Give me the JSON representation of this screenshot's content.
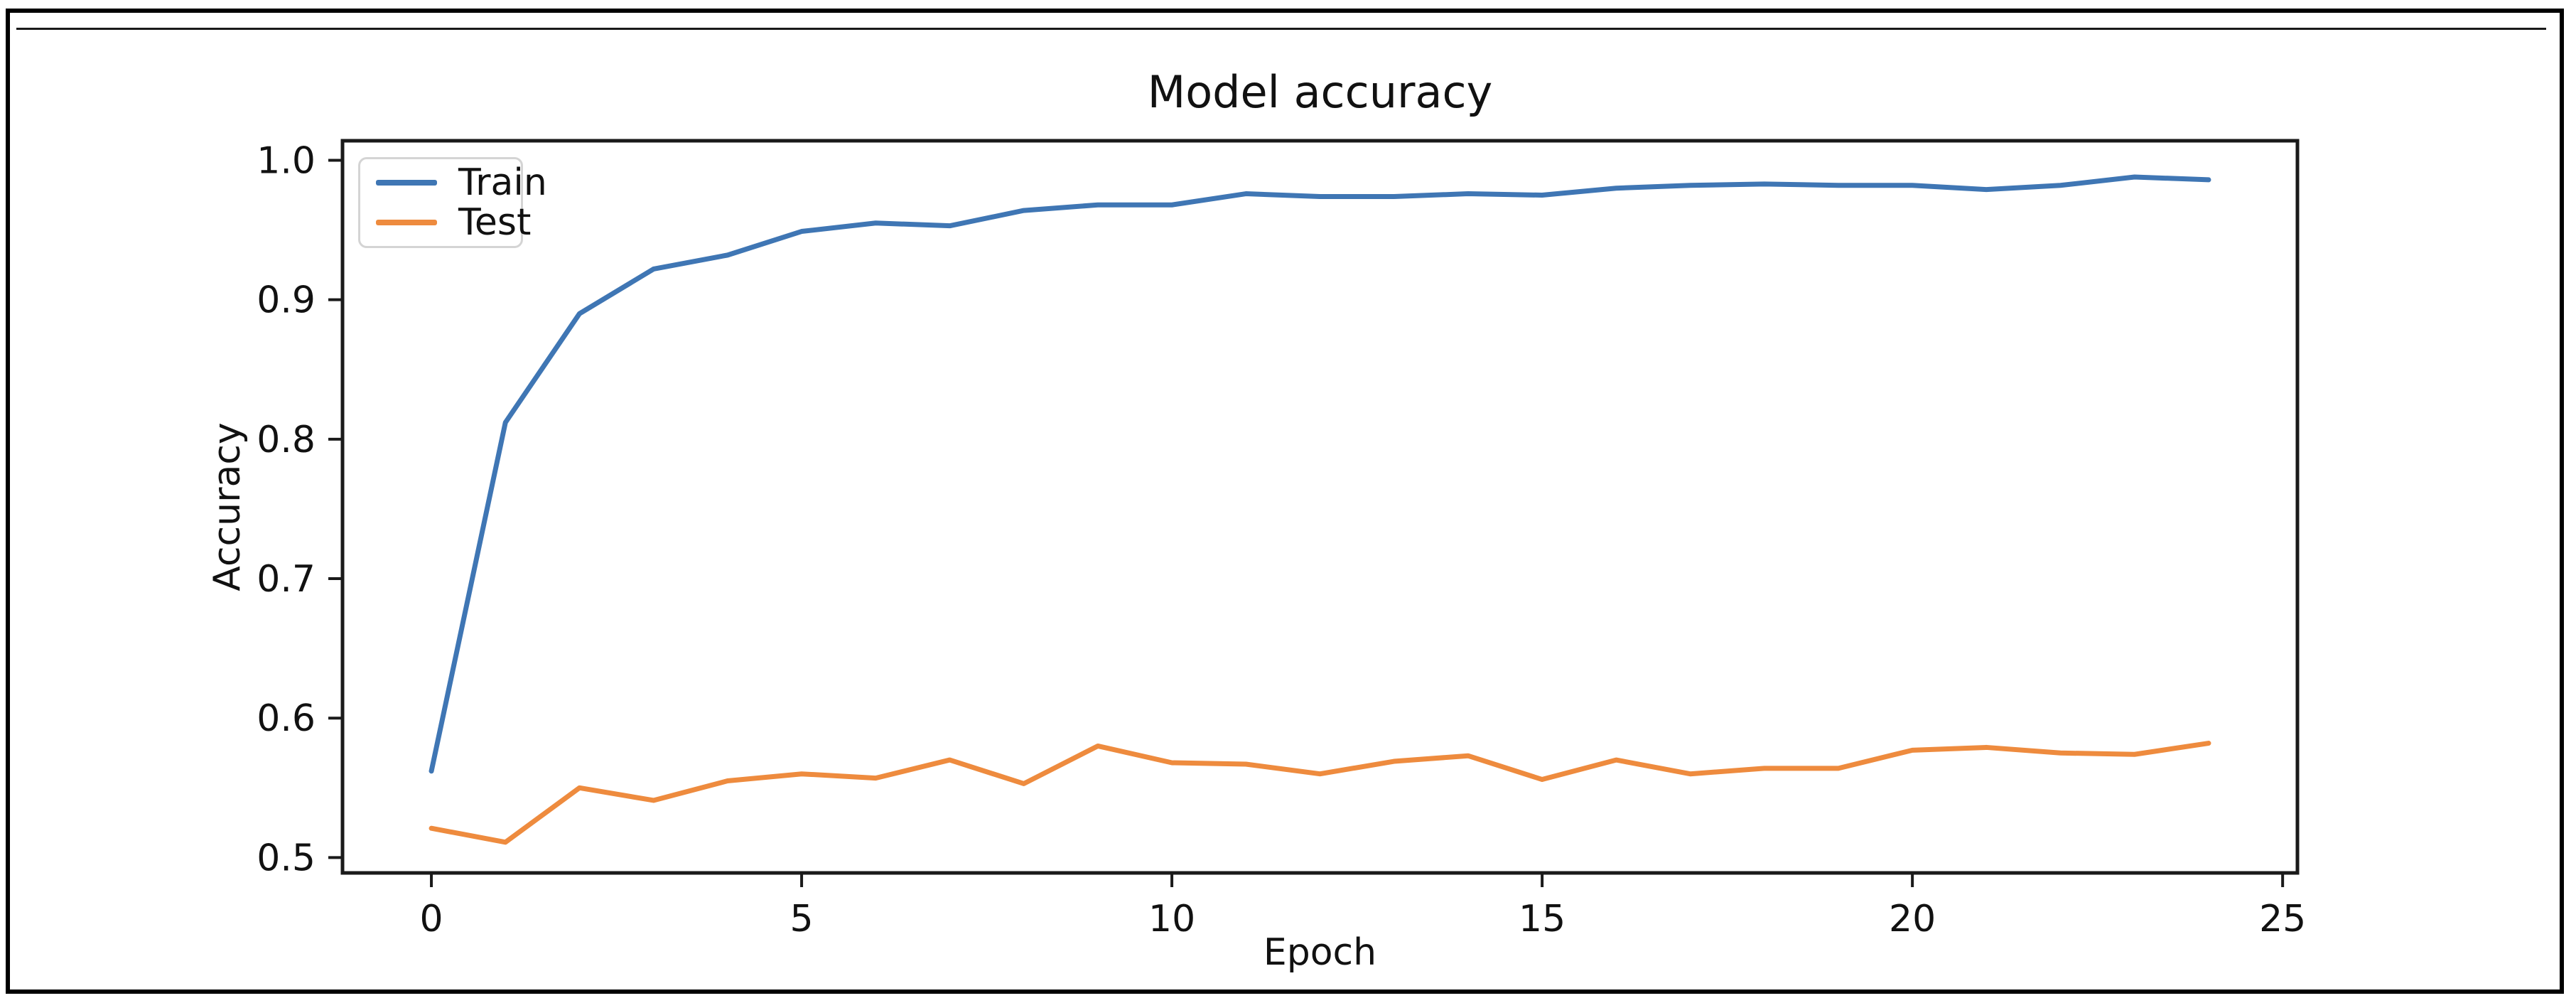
{
  "colors": {
    "train_line": "#3f76b4",
    "test_line": "#ee8b3e",
    "axis": "#1a1a1a",
    "text": "#111111",
    "legend_border": "#d4d4d4",
    "frame_border": "#000000"
  },
  "chart_data": {
    "type": "line",
    "title": "Model accuracy",
    "xlabel": "Epoch",
    "ylabel": "Accuracy",
    "grid": false,
    "legend_position": "upper left",
    "xlim": [
      -1.2,
      25.2
    ],
    "ylim": [
      0.489,
      1.014
    ],
    "x_ticks": {
      "values": [
        0,
        5,
        10,
        15,
        20,
        25
      ],
      "labels": [
        "0",
        "5",
        "10",
        "15",
        "20",
        "25"
      ]
    },
    "y_ticks": {
      "values": [
        0.5,
        0.6,
        0.7,
        0.8,
        0.9,
        1.0
      ],
      "labels": [
        "0.5",
        "0.6",
        "0.7",
        "0.8",
        "0.9",
        "1.0"
      ]
    },
    "x": [
      0,
      1,
      2,
      3,
      4,
      5,
      6,
      7,
      8,
      9,
      10,
      11,
      12,
      13,
      14,
      15,
      16,
      17,
      18,
      19,
      20,
      21,
      22,
      23,
      24
    ],
    "series": [
      {
        "name": "Train",
        "color": "#3f76b4",
        "values": [
          0.562,
          0.812,
          0.89,
          0.922,
          0.932,
          0.949,
          0.955,
          0.953,
          0.964,
          0.968,
          0.968,
          0.976,
          0.974,
          0.974,
          0.976,
          0.975,
          0.98,
          0.982,
          0.983,
          0.982,
          0.982,
          0.979,
          0.982,
          0.988,
          0.986
        ]
      },
      {
        "name": "Test",
        "color": "#ee8b3e",
        "values": [
          0.521,
          0.511,
          0.55,
          0.541,
          0.555,
          0.56,
          0.557,
          0.57,
          0.553,
          0.58,
          0.568,
          0.567,
          0.56,
          0.569,
          0.573,
          0.556,
          0.57,
          0.56,
          0.564,
          0.564,
          0.577,
          0.579,
          0.575,
          0.574,
          0.582
        ]
      }
    ]
  }
}
